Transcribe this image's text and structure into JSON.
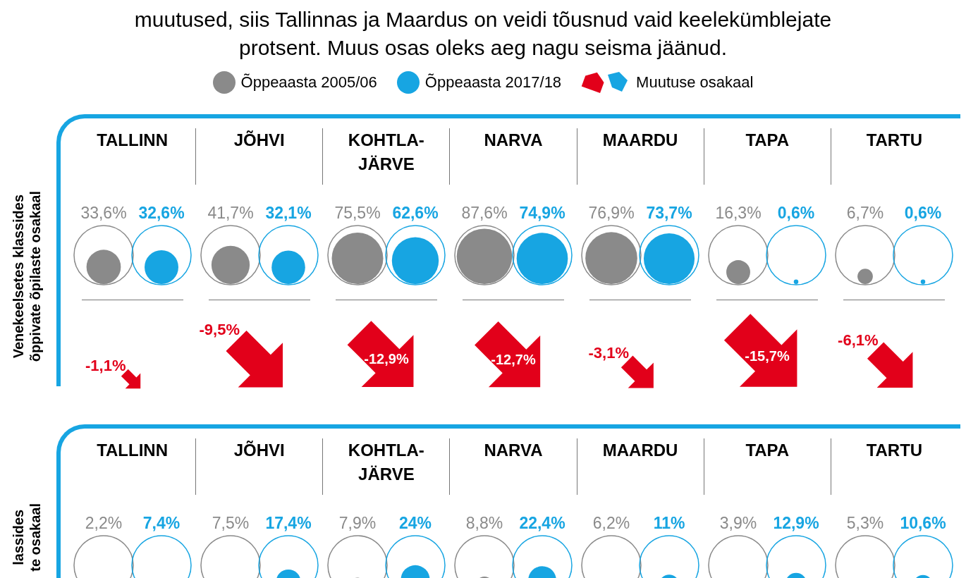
{
  "chart_data": [
    {
      "type": "other",
      "subtitle": "muutused, siis Tallinnas ja Maardus on veidi tõusnud vaid keelekümblejate\nprotsent. Muus osas oleks aeg nagu seisma jäänud.",
      "ylabel": "Venekeelsetes klassides\nõppivate õpilaste osakaal",
      "legend": "top",
      "categories": [
        "TALLINN",
        "JÕHVI",
        "KOHTLA-JÄRVE",
        "NARVA",
        "MAARDU",
        "TAPA",
        "TARTU"
      ],
      "series": [
        {
          "name": "Õppeaasta 2005/06",
          "color": "#8a8a8a",
          "values": [
            33.6,
            41.7,
            75.5,
            87.6,
            76.9,
            16.3,
            6.7
          ],
          "value_labels": [
            "33,6%",
            "41,7%",
            "75,5%",
            "87,6%",
            "76,9%",
            "16,3%",
            "6,7%"
          ]
        },
        {
          "name": "Õppeaasta 2017/18",
          "color": "#17a5e2",
          "values": [
            32.6,
            32.1,
            62.6,
            74.9,
            73.7,
            0.6,
            0.6
          ],
          "value_labels": [
            "32,6%",
            "32,1%",
            "62,6%",
            "74,9%",
            "73,7%",
            "0,6%",
            "0,6%"
          ]
        },
        {
          "name": "Muutuse osakaal",
          "color": "#e2001a",
          "values": [
            -1.1,
            -9.5,
            -12.9,
            -12.7,
            -3.1,
            -15.7,
            -6.1
          ],
          "value_labels": [
            "-1,1%",
            "-9,5%",
            "-12,9%",
            "-12,7%",
            "-3,1%",
            "-15,7%",
            "-6,1%"
          ]
        }
      ]
    },
    {
      "type": "other",
      "ylabel": "lassides\nte osakaal",
      "categories": [
        "TALLINN",
        "JÕHVI",
        "KOHTLA-JÄRVE",
        "NARVA",
        "MAARDU",
        "TAPA",
        "TARTU"
      ],
      "series": [
        {
          "color": "#8a8a8a",
          "values": [
            2.2,
            7.5,
            7.9,
            8.8,
            6.2,
            3.9,
            5.3
          ],
          "value_labels": [
            "2,2%",
            "7,5%",
            "7,9%",
            "8,8%",
            "6,2%",
            "3,9%",
            "5,3%"
          ]
        },
        {
          "color": "#17a5e2",
          "values": [
            7.4,
            17.4,
            24,
            22.4,
            11,
            12.9,
            10.6
          ],
          "value_labels": [
            "7,4%",
            "17,4%",
            "24%",
            "22,4%",
            "11%",
            "12,9%",
            "10,6%"
          ]
        }
      ]
    }
  ]
}
